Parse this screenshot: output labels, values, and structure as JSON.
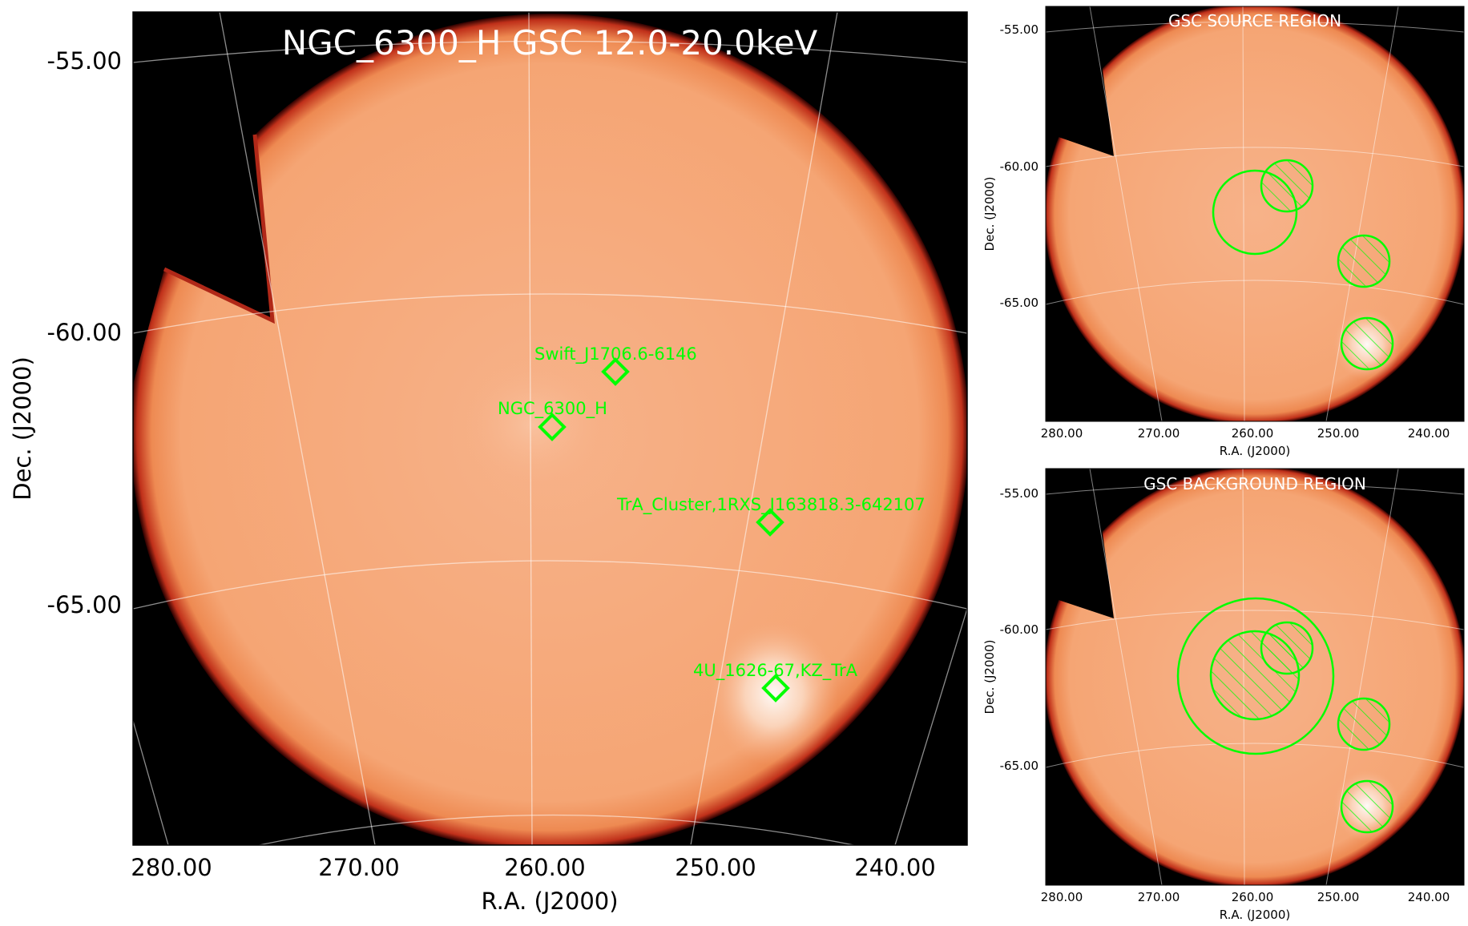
{
  "main_panel": {
    "title": "NGC_6300_H GSC 12.0-20.0keV",
    "xlabel": "R.A. (J2000)",
    "ylabel": "Dec. (J2000)",
    "x_ticks": [
      "280.00",
      "270.00",
      "260.00",
      "250.00",
      "240.00"
    ],
    "y_ticks": [
      "-55.00",
      "-60.00",
      "-65.00"
    ],
    "sources": [
      {
        "label": "Swift_J1706.6-6146"
      },
      {
        "label": "NGC_6300_H"
      },
      {
        "label": "TrA_Cluster,1RXS_J163818.3-642107"
      },
      {
        "label": "4U_1626-67,KZ_TrA"
      }
    ]
  },
  "source_panel": {
    "title": "GSC SOURCE REGION",
    "xlabel": "R.A. (J2000)",
    "ylabel": "Dec. (J2000)",
    "x_ticks": [
      "280.00",
      "270.00",
      "260.00",
      "250.00",
      "240.00"
    ],
    "y_ticks": [
      "-55.00",
      "-60.00",
      "-65.00"
    ]
  },
  "background_panel": {
    "title": "GSC BACKGROUND REGION",
    "xlabel": "R.A. (J2000)",
    "ylabel": "Dec. (J2000)",
    "x_ticks": [
      "280.00",
      "270.00",
      "260.00",
      "250.00",
      "240.00"
    ],
    "y_ticks": [
      "-55.00",
      "-60.00",
      "-65.00"
    ]
  },
  "colors": {
    "map_fill": "#f6a878",
    "map_edge": "#c0301a",
    "background": "#000000",
    "region": "#00ff00",
    "grid": "#ffffff"
  }
}
